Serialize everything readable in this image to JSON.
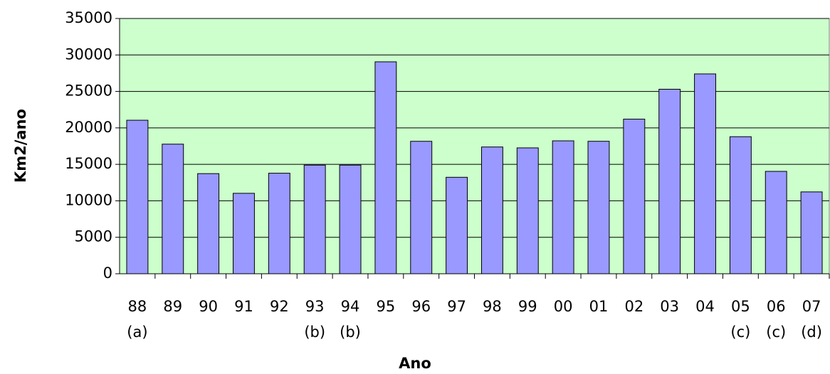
{
  "chart_data": {
    "type": "bar",
    "categories": [
      "88",
      "89",
      "90",
      "91",
      "92",
      "93",
      "94",
      "95",
      "96",
      "97",
      "98",
      "99",
      "00",
      "01",
      "02",
      "03",
      "04",
      "05",
      "06",
      "07"
    ],
    "category_notes": [
      "(a)",
      null,
      null,
      null,
      null,
      "(b)",
      "(b)",
      null,
      null,
      null,
      null,
      null,
      null,
      null,
      null,
      null,
      null,
      "(c)",
      "(c)",
      "(d)"
    ],
    "values": [
      21050,
      17770,
      13730,
      11030,
      13786,
      14896,
      14896,
      29059,
      18161,
      13227,
      17383,
      17259,
      18226,
      18165,
      21200,
      25300,
      27400,
      18793,
      14039,
      11224
    ],
    "color": "#9999ff",
    "background": "#ccffcc",
    "ylim": [
      0,
      35000
    ],
    "yticks": [
      0,
      5000,
      10000,
      15000,
      20000,
      25000,
      30000,
      35000
    ],
    "grid": true,
    "xlabel": "Ano",
    "ylabel": "Km2/ano"
  }
}
